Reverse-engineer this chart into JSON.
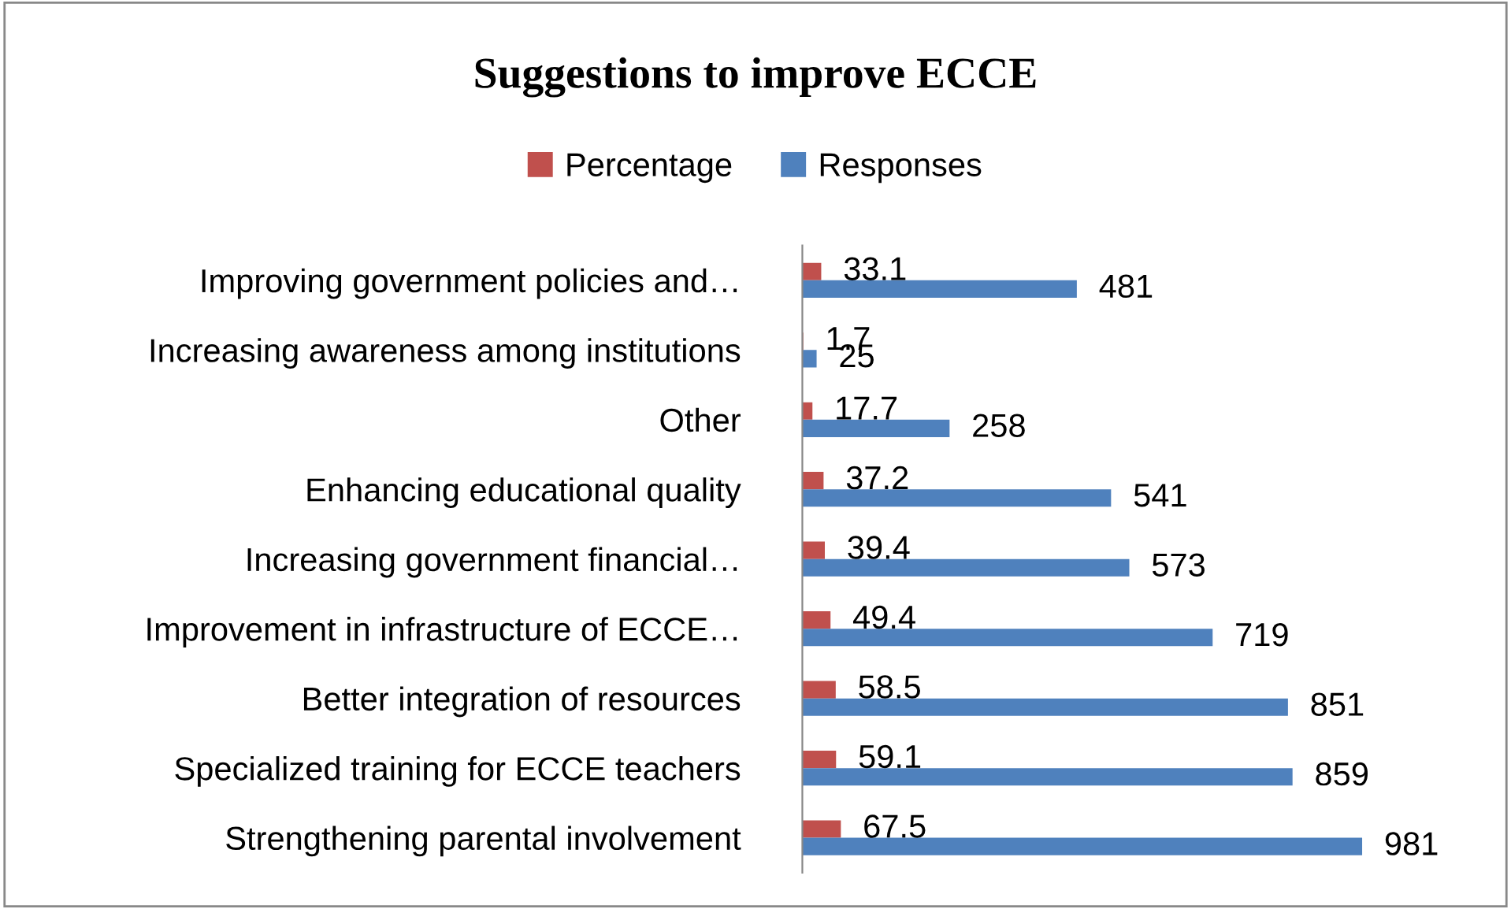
{
  "chart_data": {
    "type": "bar",
    "orientation": "horizontal",
    "title": "Suggestions to improve ECCE",
    "categories": [
      "Improving government policies and…",
      "Increasing awareness among institutions",
      "Other",
      "Enhancing educational quality",
      "Increasing government financial…",
      "Improvement in infrastructure of ECCE…",
      "Better integration of resources",
      "Specialized training for ECCE teachers",
      "Strengthening parental involvement"
    ],
    "series": [
      {
        "name": "Percentage",
        "color": "#c0504d",
        "values": [
          33.1,
          1.7,
          17.7,
          37.2,
          39.4,
          49.4,
          58.5,
          59.1,
          67.5
        ]
      },
      {
        "name": "Responses",
        "color": "#4f81bd",
        "values": [
          481,
          25,
          258,
          541,
          573,
          719,
          851,
          859,
          981
        ]
      }
    ],
    "data_labels": true,
    "legend": "top",
    "grid": false,
    "tick_labels": "y"
  }
}
